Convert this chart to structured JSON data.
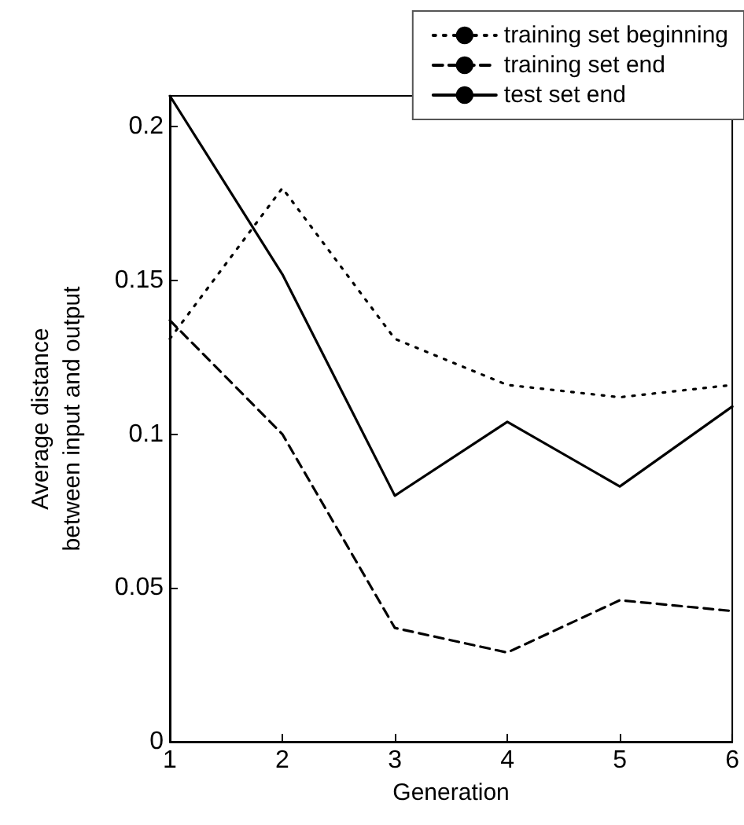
{
  "chart_data": {
    "type": "line",
    "xlabel": "Generation",
    "ylabel": "Average distance\nbetween input and output",
    "x": [
      1,
      2,
      3,
      4,
      5,
      6
    ],
    "xlim": [
      1,
      6
    ],
    "xticks": [
      1,
      2,
      3,
      4,
      5,
      6
    ],
    "ylim": [
      0,
      0.21
    ],
    "yticks": [
      0,
      0.05,
      0.1,
      0.15,
      0.2
    ],
    "grid": false,
    "legend": "top right",
    "marker": "none",
    "series": [
      {
        "name": "training set beginning",
        "color": "#000000",
        "line_style": "dotted",
        "values": [
          0.131,
          0.18,
          0.131,
          0.116,
          0.112,
          0.116
        ]
      },
      {
        "name": "training set end",
        "color": "#000000",
        "line_style": "dashed",
        "values": [
          0.137,
          0.1,
          0.037,
          0.029,
          0.046,
          0.0425
        ]
      },
      {
        "name": "test set end",
        "color": "#000000",
        "line_style": "solid",
        "values": [
          0.21,
          0.152,
          0.08,
          0.104,
          0.083,
          0.109
        ]
      }
    ]
  }
}
